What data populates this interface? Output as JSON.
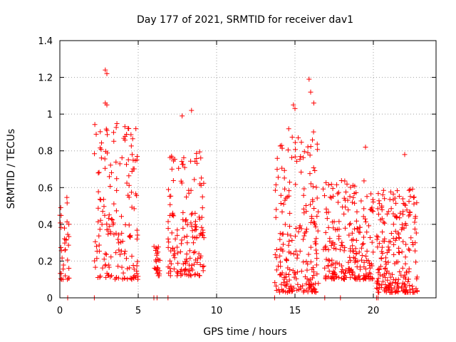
{
  "chart_data": {
    "type": "scatter",
    "title": "Day 177 of 2021, SRMTID for receiver dav1",
    "xlabel": "GPS time / hours",
    "ylabel": "SRMTID / TECUs",
    "xlim": [
      0,
      24
    ],
    "ylim": [
      0,
      1.4
    ],
    "xticks": [
      0,
      5,
      10,
      15,
      20
    ],
    "yticks": [
      0,
      0.2,
      0.4,
      0.6,
      0.8,
      1.0,
      1.2,
      1.4
    ],
    "xtick_labels": [
      "0",
      "5",
      "10",
      "15",
      "20"
    ],
    "ytick_labels": [
      "0",
      "0.2",
      "0.4",
      "0.6",
      "0.8",
      "1",
      "1.2",
      "1.4"
    ],
    "grid": true,
    "marker": "+",
    "color": "#ff0000",
    "clusters": [
      {
        "x_start": 0.0,
        "x_end": 0.6,
        "y_min": 0.1,
        "y_max": 0.7,
        "n": 35
      },
      {
        "x_start": 2.2,
        "x_end": 5.0,
        "y_min": 0.1,
        "y_max": 1.24,
        "n": 170
      },
      {
        "x_start": 6.0,
        "x_end": 6.4,
        "y_min": 0.12,
        "y_max": 0.35,
        "n": 25
      },
      {
        "x_start": 6.9,
        "x_end": 9.2,
        "y_min": 0.12,
        "y_max": 1.02,
        "n": 160
      },
      {
        "x_start": 13.7,
        "x_end": 16.5,
        "y_min": 0.03,
        "y_max": 1.2,
        "n": 220
      },
      {
        "x_start": 16.8,
        "x_end": 20.0,
        "y_min": 0.1,
        "y_max": 0.82,
        "n": 230
      },
      {
        "x_start": 20.2,
        "x_end": 22.8,
        "y_min": 0.03,
        "y_max": 0.78,
        "n": 230
      }
    ],
    "highlight_points": [
      {
        "x": 2.9,
        "y": 1.24
      },
      {
        "x": 3.0,
        "y": 1.22
      },
      {
        "x": 2.9,
        "y": 1.06
      },
      {
        "x": 3.0,
        "y": 1.05
      },
      {
        "x": 8.4,
        "y": 1.02
      },
      {
        "x": 7.8,
        "y": 0.99
      },
      {
        "x": 15.9,
        "y": 1.19
      },
      {
        "x": 16.0,
        "y": 1.12
      },
      {
        "x": 16.2,
        "y": 1.06
      },
      {
        "x": 15.0,
        "y": 1.03
      },
      {
        "x": 14.9,
        "y": 1.05
      },
      {
        "x": 14.6,
        "y": 0.92
      },
      {
        "x": 22.0,
        "y": 0.78
      },
      {
        "x": 19.5,
        "y": 0.82
      }
    ],
    "zero_points_x": [
      0.5,
      2.2,
      6.0,
      6.2,
      6.9,
      13.7,
      16.9,
      17.9,
      20.2,
      20.3
    ]
  }
}
